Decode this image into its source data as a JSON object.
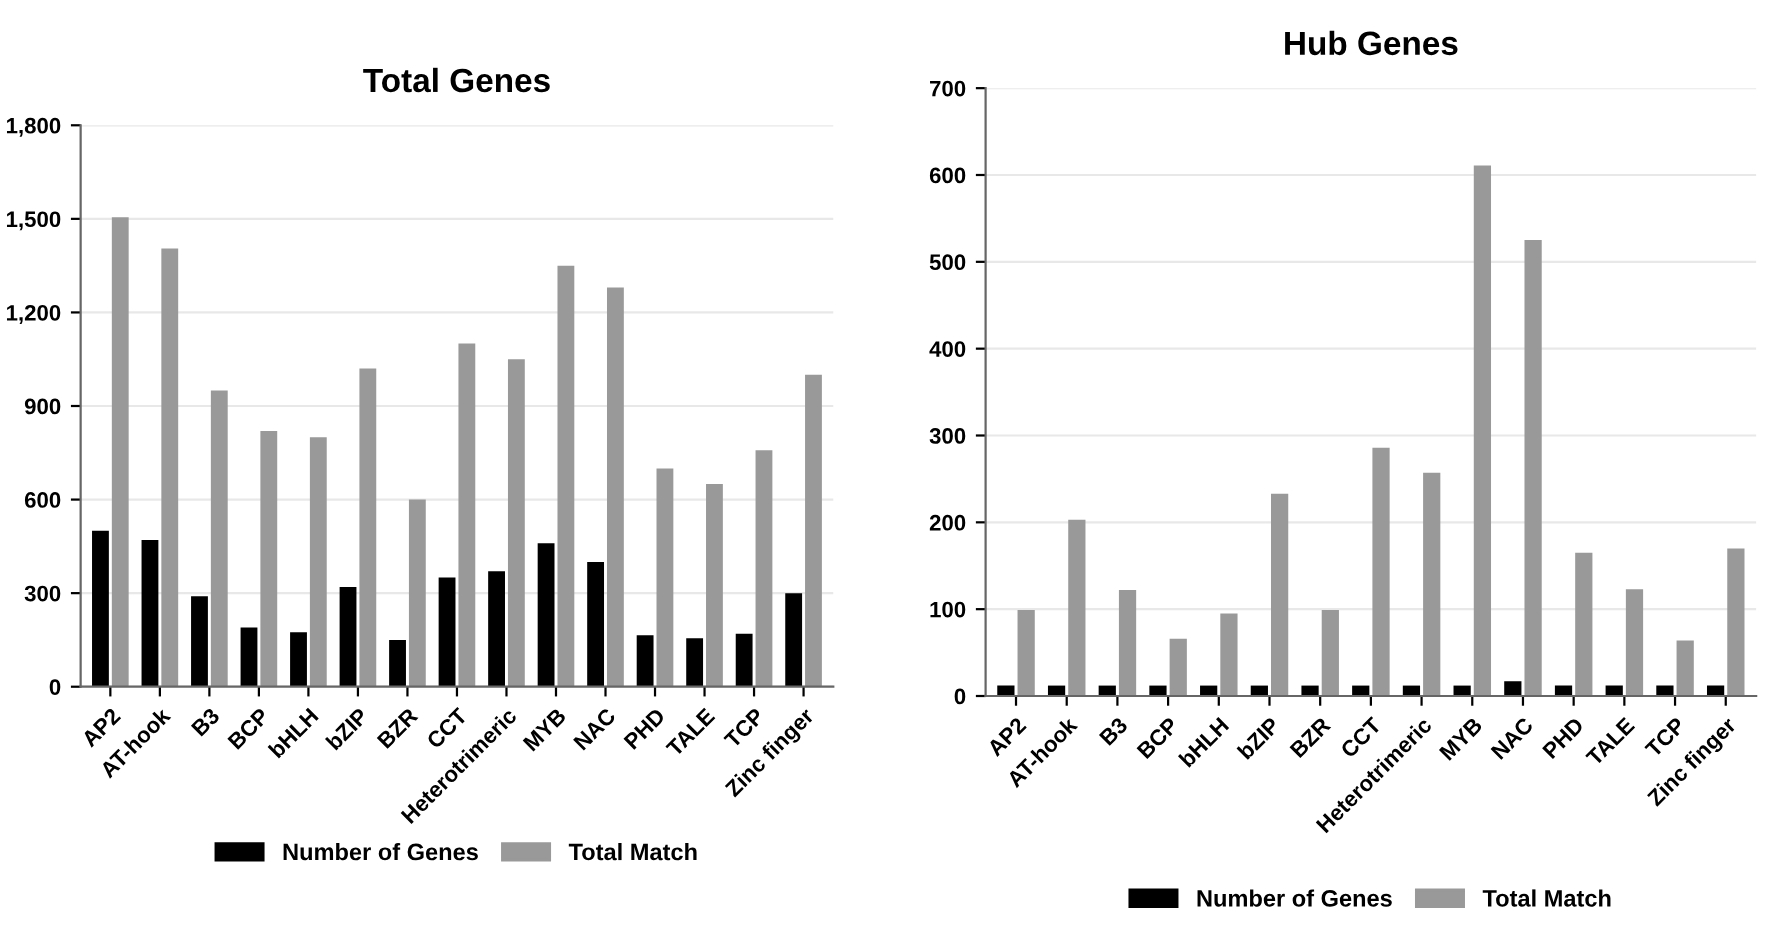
{
  "chart_data": [
    {
      "type": "bar",
      "title": "Total Genes",
      "categories": [
        "AP2",
        "AT-hook",
        "B3",
        "BCP",
        "bHLH",
        "bZIP",
        "BZR",
        "CCT",
        "Heterotrimeric",
        "MYB",
        "NAC",
        "PHD",
        "TALE",
        "TCP",
        "Zinc finger"
      ],
      "series": [
        {
          "name": "Number of Genes",
          "color": "#000000",
          "values": [
            500,
            470,
            290,
            190,
            175,
            320,
            150,
            350,
            370,
            460,
            400,
            165,
            155,
            170,
            300
          ]
        },
        {
          "name": "Total Match",
          "color": "#999999",
          "values": [
            1505,
            1405,
            950,
            820,
            800,
            1020,
            600,
            1100,
            1050,
            1350,
            1280,
            700,
            650,
            758,
            1000
          ]
        }
      ],
      "ylim": [
        0,
        1800
      ],
      "yticks": [
        {
          "value": 0,
          "label": "0"
        },
        {
          "value": 300,
          "label": "300"
        },
        {
          "value": 600,
          "label": "600"
        },
        {
          "value": 900,
          "label": "900"
        },
        {
          "value": 1200,
          "label": "1,200"
        },
        {
          "value": 1500,
          "label": "1,500"
        },
        {
          "value": 1800,
          "label": "1,800"
        }
      ],
      "grid": "y",
      "legend": "bottom"
    },
    {
      "type": "bar",
      "title": "Hub Genes",
      "categories": [
        "AP2",
        "AT-hook",
        "B3",
        "BCP",
        "bHLH",
        "bZIP",
        "BZR",
        "CCT",
        "Heterotrimeric",
        "MYB",
        "NAC",
        "PHD",
        "TALE",
        "TCP",
        "Zinc finger"
      ],
      "series": [
        {
          "name": "Number of Genes",
          "color": "#000000",
          "values": [
            12,
            12,
            12,
            12,
            12,
            12,
            12,
            12,
            12,
            12,
            17,
            12,
            12,
            12,
            12
          ]
        },
        {
          "name": "Total Match",
          "color": "#999999",
          "values": [
            99,
            203,
            122,
            66,
            95,
            233,
            99,
            286,
            257,
            611,
            525,
            165,
            123,
            64,
            170
          ]
        }
      ],
      "ylim": [
        0,
        700
      ],
      "yticks": [
        0,
        100,
        200,
        300,
        400,
        500,
        600,
        700
      ],
      "grid": "y",
      "legend": "bottom"
    }
  ]
}
